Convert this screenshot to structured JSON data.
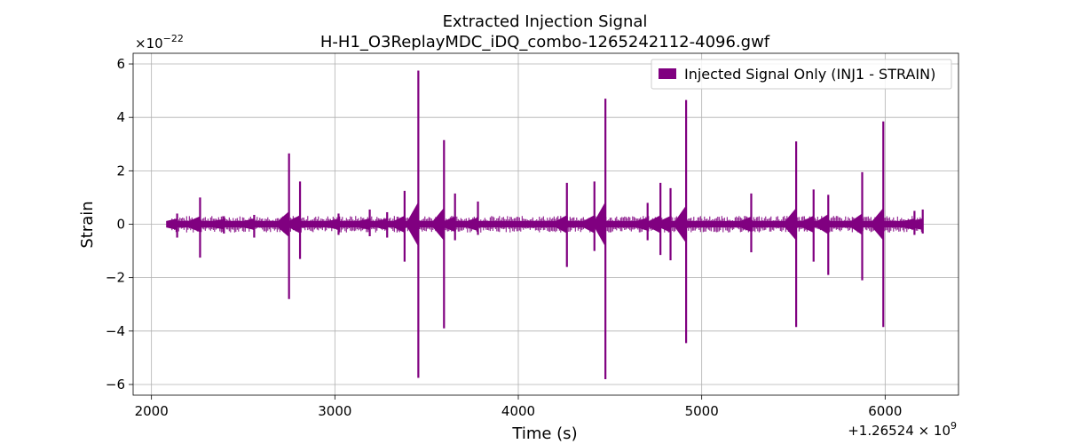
{
  "chart_data": {
    "type": "line",
    "title": "Extracted Injection Signal",
    "subtitle": "H-H1_O3ReplayMDC_iDQ_combo-1265242112-4096.gwf",
    "xlabel": "Time (s)",
    "ylabel": "Strain",
    "x_offset_label": "+1.26524 × 10^9",
    "y_scale_label": "×10^−22",
    "xlim": [
      1900,
      6400
    ],
    "ylim": [
      -6.4,
      6.4
    ],
    "x_ticks": [
      2000,
      3000,
      4000,
      5000,
      6000
    ],
    "x_tick_labels": [
      "2000",
      "3000",
      "4000",
      "5000",
      "6000"
    ],
    "y_ticks": [
      -6,
      -4,
      -2,
      0,
      2,
      4,
      6
    ],
    "y_tick_labels": [
      "−6",
      "−4",
      "−2",
      "0",
      "2",
      "4",
      "6"
    ],
    "grid": true,
    "legend_position": "top-right",
    "series": [
      {
        "name": "Injected Signal Only (INJ1 - STRAIN)",
        "color": "#800080",
        "t_start": 2112,
        "t_end": 6208,
        "baseline_amplitude": 0.12,
        "spikes": [
          {
            "t": 2140,
            "pos": 0.4,
            "neg": -0.5
          },
          {
            "t": 2265,
            "pos": 1.0,
            "neg": -1.25
          },
          {
            "t": 2395,
            "pos": 0.3,
            "neg": -0.35
          },
          {
            "t": 2560,
            "pos": 0.35,
            "neg": -0.5
          },
          {
            "t": 2750,
            "pos": 2.65,
            "neg": -2.8
          },
          {
            "t": 2810,
            "pos": 1.6,
            "neg": -1.3
          },
          {
            "t": 3020,
            "pos": 0.4,
            "neg": -0.4
          },
          {
            "t": 3190,
            "pos": 0.55,
            "neg": -0.45
          },
          {
            "t": 3285,
            "pos": 0.45,
            "neg": -0.5
          },
          {
            "t": 3380,
            "pos": 1.25,
            "neg": -1.4
          },
          {
            "t": 3455,
            "pos": 5.75,
            "neg": -5.75
          },
          {
            "t": 3595,
            "pos": 3.15,
            "neg": -3.9
          },
          {
            "t": 3655,
            "pos": 1.15,
            "neg": -0.6
          },
          {
            "t": 3780,
            "pos": 0.85,
            "neg": -0.4
          },
          {
            "t": 4265,
            "pos": 1.55,
            "neg": -1.6
          },
          {
            "t": 4415,
            "pos": 1.6,
            "neg": -1.0
          },
          {
            "t": 4475,
            "pos": 4.7,
            "neg": -5.8
          },
          {
            "t": 4705,
            "pos": 0.8,
            "neg": -0.6
          },
          {
            "t": 4775,
            "pos": 1.55,
            "neg": -1.15
          },
          {
            "t": 4830,
            "pos": 1.35,
            "neg": -1.35
          },
          {
            "t": 4915,
            "pos": 4.65,
            "neg": -4.45
          },
          {
            "t": 5270,
            "pos": 1.15,
            "neg": -1.05
          },
          {
            "t": 5515,
            "pos": 3.1,
            "neg": -3.85
          },
          {
            "t": 5610,
            "pos": 1.3,
            "neg": -1.4
          },
          {
            "t": 5690,
            "pos": 1.1,
            "neg": -1.9
          },
          {
            "t": 5875,
            "pos": 1.95,
            "neg": -2.1
          },
          {
            "t": 5990,
            "pos": 3.85,
            "neg": -3.85
          },
          {
            "t": 6160,
            "pos": 0.5,
            "neg": -0.4
          },
          {
            "t": 6205,
            "pos": 0.55,
            "neg": -0.35
          }
        ]
      }
    ]
  }
}
